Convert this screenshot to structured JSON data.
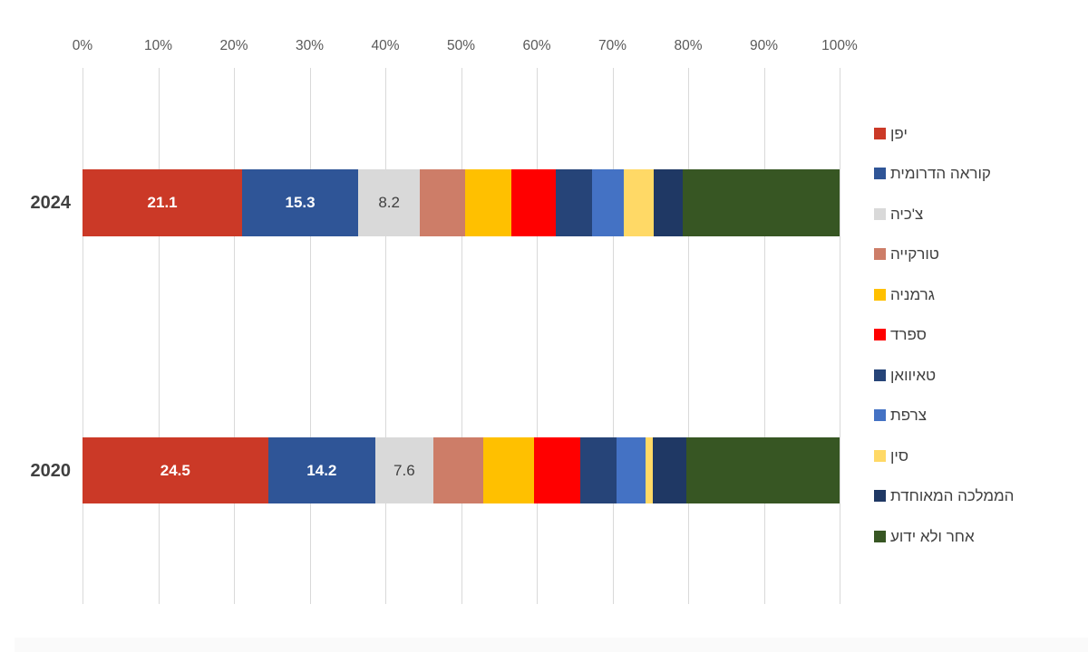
{
  "chart_data": {
    "type": "bar",
    "variant": "horizontal-stacked",
    "title": "",
    "x_axis": {
      "tick_labels": [
        "0%",
        "10%",
        "20%",
        "30%",
        "40%",
        "50%",
        "60%",
        "70%",
        "80%",
        "90%",
        "100%"
      ],
      "range": [
        0,
        100
      ],
      "grid": true
    },
    "categories": [
      "2024",
      "2020"
    ],
    "series": [
      {
        "key": "japan",
        "name": "יפן",
        "color": "#CB3927",
        "values": [
          21.1,
          24.5
        ],
        "value_labels": [
          "21.1",
          "24.5"
        ],
        "label_style": "light"
      },
      {
        "key": "south-korea",
        "name": "קוראה הדרומית",
        "color": "#2F5597",
        "values": [
          15.3,
          14.2
        ],
        "value_labels": [
          "15.3",
          "14.2"
        ],
        "label_style": "light"
      },
      {
        "key": "czechia",
        "name": "צ'כיה",
        "color": "#D9D9D9",
        "values": [
          8.2,
          7.6
        ],
        "value_labels": [
          "8.2",
          "7.6"
        ],
        "label_style": "dark"
      },
      {
        "key": "turkey",
        "name": "טורקייה",
        "color": "#CD7D68",
        "values": [
          6.0,
          6.6
        ]
      },
      {
        "key": "germany",
        "name": "גרמניה",
        "color": "#FFC000",
        "values": [
          6.0,
          6.7
        ]
      },
      {
        "key": "spain",
        "name": "ספרד",
        "color": "#FF0000",
        "values": [
          5.9,
          6.1
        ]
      },
      {
        "key": "taiwan",
        "name": "טאיוואן",
        "color": "#264478",
        "values": [
          4.8,
          4.8
        ]
      },
      {
        "key": "france",
        "name": "צרפת",
        "color": "#4472C4",
        "values": [
          4.2,
          3.9
        ]
      },
      {
        "key": "china",
        "name": "סין",
        "color": "#FFD966",
        "values": [
          4.0,
          0.9
        ]
      },
      {
        "key": "united-kingdom",
        "name": "הממלכה המאוחדת",
        "color": "#1F3864",
        "values": [
          3.8,
          4.5
        ]
      },
      {
        "key": "other-unknown",
        "name": "אחר ולא ידוע",
        "color": "#375623",
        "values": [
          20.7,
          20.2
        ]
      }
    ],
    "legend_position": "right"
  },
  "style": {
    "grid_color": "#D9D9D9",
    "axis_text_color": "#595959",
    "category_text_color": "#404040",
    "legend_text_color": "#404040"
  }
}
